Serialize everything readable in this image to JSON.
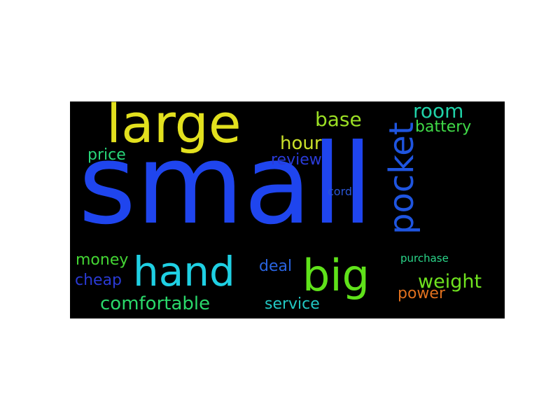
{
  "word_cloud": {
    "background_color": "#000000",
    "words": {
      "small": {
        "text": "small",
        "color": "#1f45ee"
      },
      "large": {
        "text": "large",
        "color": "#e2e01e"
      },
      "hand": {
        "text": "hand",
        "color": "#1fd0e3"
      },
      "big": {
        "text": "big",
        "color": "#5fe21a"
      },
      "pocket": {
        "text": "pocket",
        "color": "#1f55e0"
      },
      "room": {
        "text": "room",
        "color": "#20d2a8"
      },
      "base": {
        "text": "base",
        "color": "#9bdf24"
      },
      "battery": {
        "text": "battery",
        "color": "#40db48"
      },
      "hour": {
        "text": "hour",
        "color": "#c9e02a"
      },
      "price": {
        "text": "price",
        "color": "#28d67a"
      },
      "review": {
        "text": "review",
        "color": "#2a3bd8"
      },
      "cord": {
        "text": "cord",
        "color": "#2a55d4"
      },
      "money": {
        "text": "money",
        "color": "#44d634"
      },
      "deal": {
        "text": "deal",
        "color": "#2a64e0"
      },
      "purchase": {
        "text": "purchase",
        "color": "#2ad68a"
      },
      "cheap": {
        "text": "cheap",
        "color": "#2a3ad4"
      },
      "weight": {
        "text": "weight",
        "color": "#6fe21f"
      },
      "comfortable": {
        "text": "comfortable",
        "color": "#2ad86a"
      },
      "service": {
        "text": "service",
        "color": "#22c8c4"
      },
      "power": {
        "text": "power",
        "color": "#e0701e"
      }
    }
  }
}
